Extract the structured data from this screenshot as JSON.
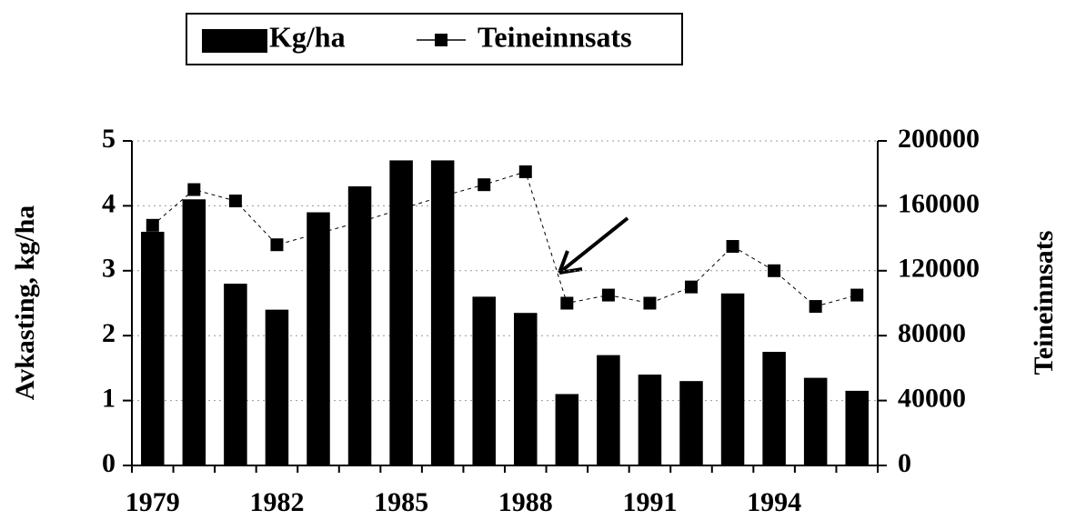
{
  "chart_data": {
    "type": "bar",
    "categories": [
      "1979",
      null,
      null,
      "1982",
      null,
      null,
      "1985",
      null,
      null,
      "1988",
      null,
      null,
      "1991",
      null,
      null,
      "1994",
      null,
      null
    ],
    "series": [
      {
        "name": "Kg/ha",
        "color": "#000000",
        "values": [
          3.6,
          4.1,
          2.8,
          2.4,
          3.9,
          4.3,
          4.7,
          4.7,
          2.6,
          2.35,
          1.1,
          1.7,
          1.4,
          1.3,
          2.65,
          1.75,
          1.35,
          1.15
        ]
      },
      {
        "name": "Teineinnsats",
        "color": "#000000",
        "axis": "y2",
        "values": [
          148000,
          170000,
          163000,
          136000,
          143000,
          150000,
          158000,
          166000,
          173000,
          181000,
          100000,
          105000,
          100000,
          110000,
          135000,
          120000,
          98000,
          105000
        ]
      }
    ],
    "y_label": "Avkasting, kg/ha",
    "y2_label": "Teineinnsats",
    "ylim": [
      0,
      5
    ],
    "yticks": [
      0,
      1,
      2,
      3,
      4,
      5
    ],
    "y2lim": [
      0,
      200000
    ],
    "y2ticks": [
      0,
      40000,
      80000,
      120000,
      160000,
      200000
    ],
    "grid": true
  }
}
